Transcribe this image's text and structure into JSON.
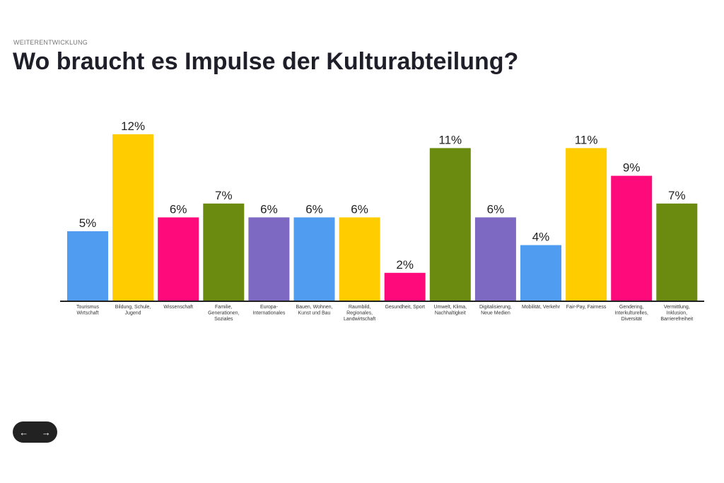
{
  "header": {
    "eyebrow": "WEITERENTWICKLUNG",
    "title": "Wo braucht es Impulse der Kulturabteilung?"
  },
  "nav": {
    "prev_icon": "arrow-left-icon",
    "prev": "←",
    "next_icon": "arrow-right-icon",
    "next": "→"
  },
  "chart_data": {
    "type": "bar",
    "categories": [
      [
        "Tourismus",
        "Wirtschaft"
      ],
      [
        "Bildung, Schule,",
        "Jugend"
      ],
      [
        "Wissenschaft"
      ],
      [
        "Familie,",
        "Generationen,",
        "Soziales"
      ],
      [
        "Europa-",
        "Internationales"
      ],
      [
        "Bauen, Wohnen,",
        "Kunst und Bau"
      ],
      [
        "Raumbild,",
        "Regionales,",
        "Landwirtschaft"
      ],
      [
        "Gesundheit, Sport"
      ],
      [
        "Umwelt, Klima,",
        "Nachhaltigkeit"
      ],
      [
        "Digitalisierung,",
        "Neue Medien"
      ],
      [
        "Mobilität, Verkehr"
      ],
      [
        "Fair-Pay, Fairness"
      ],
      [
        "Gendering,",
        "Interkulturelles,",
        "Diversität"
      ],
      [
        "Vermittlung,",
        "Inklusion,",
        "Barrierefreiheit"
      ]
    ],
    "values": [
      5,
      12,
      6,
      7,
      6,
      6,
      6,
      2,
      11,
      6,
      4,
      11,
      9,
      7
    ],
    "labels": [
      "5%",
      "12%",
      "6%",
      "7%",
      "6%",
      "6%",
      "6%",
      "2%",
      "11%",
      "6%",
      "4%",
      "11%",
      "9%",
      "7%"
    ],
    "colors": [
      "#4f9cf0",
      "#ffcc00",
      "#ff0a7a",
      "#6b8a10",
      "#7d68c2",
      "#4f9cf0",
      "#ffcc00",
      "#ff0a7a",
      "#6b8a10",
      "#7d68c2",
      "#4f9cf0",
      "#ffcc00",
      "#ff0a7a",
      "#6b8a10"
    ],
    "unit": "%",
    "ylim": [
      0,
      12
    ],
    "grid": false
  }
}
